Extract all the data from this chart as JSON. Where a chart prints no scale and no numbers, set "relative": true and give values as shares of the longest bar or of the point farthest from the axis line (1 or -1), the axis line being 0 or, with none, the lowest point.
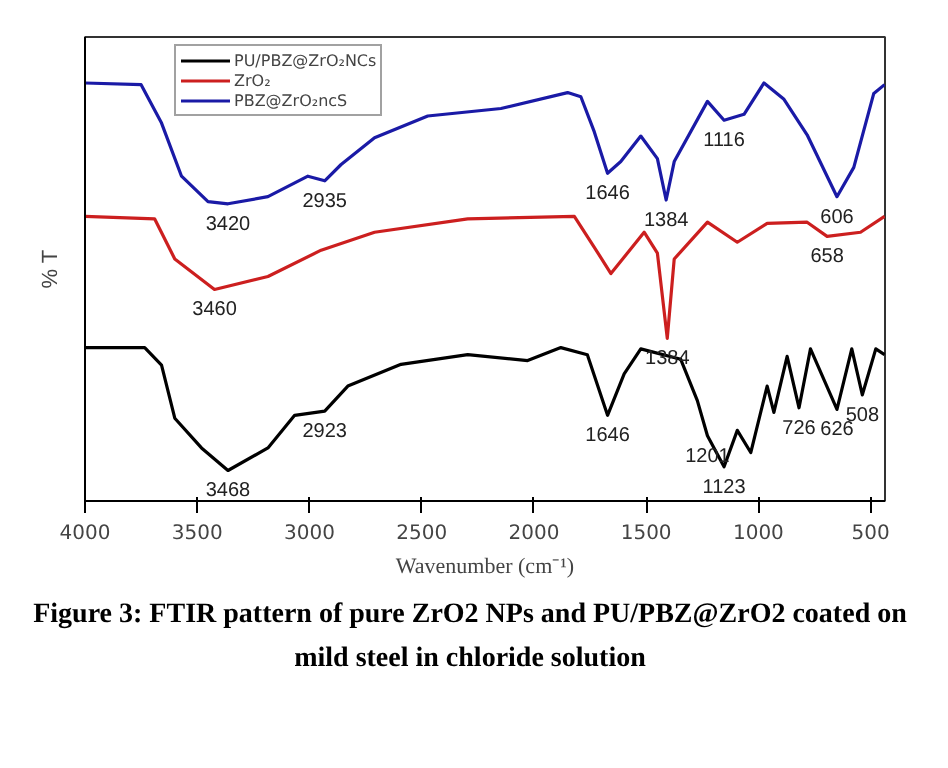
{
  "chart_data": {
    "type": "line",
    "title": "Figure 3: FTIR pattern of pure ZrO2 NPs and PU/PBZ@ZrO2 coated on mild steel in chloride solution",
    "xlabel": "Wavenumber (cm⁻¹)",
    "ylabel": "% T",
    "relative": true,
    "xlim": [
      4000,
      436
    ],
    "xticks": [
      4000,
      3500,
      3000,
      2500,
      2000,
      1500,
      1000,
      500
    ],
    "grid": false,
    "legend": "top left",
    "marker": "none",
    "line_style": "solid",
    "series": [
      {
        "name": "PU/PBZ@ZrO₂NCs",
        "color": "#000000",
        "x": [
          4000,
          3734,
          3659,
          3600,
          3481,
          3363,
          3185,
          3066,
          2932,
          2829,
          2592,
          2295,
          2028,
          1880,
          1762,
          1672,
          1598,
          1524,
          1346,
          1272,
          1227,
          1153,
          1094,
          1034,
          961,
          931,
          872,
          819,
          768,
          650,
          584,
          537,
          477,
          438
        ],
        "values": [
          0.367,
          0.367,
          0.325,
          0.198,
          0.127,
          0.073,
          0.127,
          0.205,
          0.215,
          0.275,
          0.327,
          0.35,
          0.336,
          0.367,
          0.35,
          0.205,
          0.304,
          0.364,
          0.339,
          0.24,
          0.156,
          0.082,
          0.169,
          0.116,
          0.275,
          0.212,
          0.346,
          0.223,
          0.364,
          0.219,
          0.364,
          0.254,
          0.364,
          0.35
        ]
      },
      {
        "name": "ZrO₂",
        "color": "#cc1f1f",
        "x": [
          4000,
          3690,
          3600,
          3423,
          3185,
          2948,
          2710,
          2295,
          1820,
          1731,
          1657,
          1509,
          1450,
          1406,
          1375,
          1227,
          1094,
          961,
          783,
          694,
          545,
          438
        ],
        "values": [
          0.681,
          0.675,
          0.579,
          0.506,
          0.537,
          0.6,
          0.643,
          0.675,
          0.681,
          0.607,
          0.544,
          0.643,
          0.593,
          0.389,
          0.579,
          0.667,
          0.619,
          0.664,
          0.667,
          0.633,
          0.643,
          0.681
        ]
      },
      {
        "name": "PBZ@ZrO₂ncS",
        "color": "#1a1aa6",
        "x": [
          4000,
          3750,
          3659,
          3570,
          3452,
          3363,
          3185,
          3007,
          2932,
          2859,
          2710,
          2473,
          2147,
          1850,
          1791,
          1731,
          1672,
          1613,
          1524,
          1450,
          1411,
          1375,
          1227,
          1153,
          1064,
          975,
          886,
          783,
          650,
          575,
          486,
          438
        ],
        "values": [
          1.0,
          0.996,
          0.904,
          0.777,
          0.716,
          0.711,
          0.728,
          0.777,
          0.766,
          0.805,
          0.869,
          0.921,
          0.939,
          0.977,
          0.967,
          0.883,
          0.784,
          0.812,
          0.873,
          0.819,
          0.72,
          0.812,
          0.956,
          0.911,
          0.925,
          1.0,
          0.961,
          0.876,
          0.728,
          0.798,
          0.975,
          0.996
        ]
      }
    ],
    "annotations": [
      {
        "text": "3420",
        "x": 3363,
        "y": 0.711
      },
      {
        "text": "2935",
        "x": 2932,
        "y": 0.766
      },
      {
        "text": "1646",
        "x": 1672,
        "y": 0.784
      },
      {
        "text": "1384",
        "x": 1411,
        "y": 0.72
      },
      {
        "text": "1116",
        "x": 1153,
        "y": 0.911
      },
      {
        "text": "606",
        "x": 650,
        "y": 0.728
      },
      {
        "text": "658",
        "x": 694,
        "y": 0.633
      },
      {
        "text": "3460",
        "x": 3423,
        "y": 0.506
      },
      {
        "text": "1384",
        "x": 1406,
        "y": 0.389
      },
      {
        "text": "3468",
        "x": 3363,
        "y": 0.073
      },
      {
        "text": "2923",
        "x": 2932,
        "y": 0.215
      },
      {
        "text": "1646",
        "x": 1672,
        "y": 0.205
      },
      {
        "text": "1201",
        "x": 1227,
        "y": 0.156
      },
      {
        "text": "1123",
        "x": 1153,
        "y": 0.082
      },
      {
        "text": "726",
        "x": 819,
        "y": 0.223
      },
      {
        "text": "626",
        "x": 650,
        "y": 0.219
      },
      {
        "text": "508",
        "x": 537,
        "y": 0.254
      }
    ]
  }
}
